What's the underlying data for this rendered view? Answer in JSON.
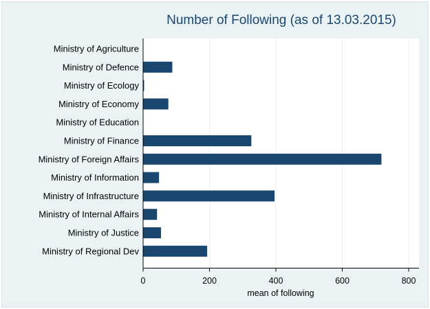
{
  "chart_data": {
    "type": "bar",
    "orientation": "horizontal",
    "title": "Number of Following (as of 13.03.2015)",
    "xlabel": "mean of following",
    "ylabel": "",
    "xlim": [
      0,
      800
    ],
    "xticks": [
      0,
      200,
      400,
      600,
      800
    ],
    "grid": true,
    "categories": [
      "Ministry of Agriculture",
      "Ministry of Defence",
      "Ministry of Ecology",
      "Ministry of Economy",
      "Ministry of Education",
      "Ministry of Finance",
      "Ministry of Foreign Affairs",
      "Ministry of Information",
      "Ministry of Infrastructure",
      "Ministry of Internal Affairs",
      "Ministry of Justice",
      "Ministry of Regional Dev"
    ],
    "values": [
      0,
      88,
      3,
      76,
      0,
      326,
      718,
      48,
      396,
      42,
      54,
      193
    ],
    "bar_color": "#1a476f"
  }
}
